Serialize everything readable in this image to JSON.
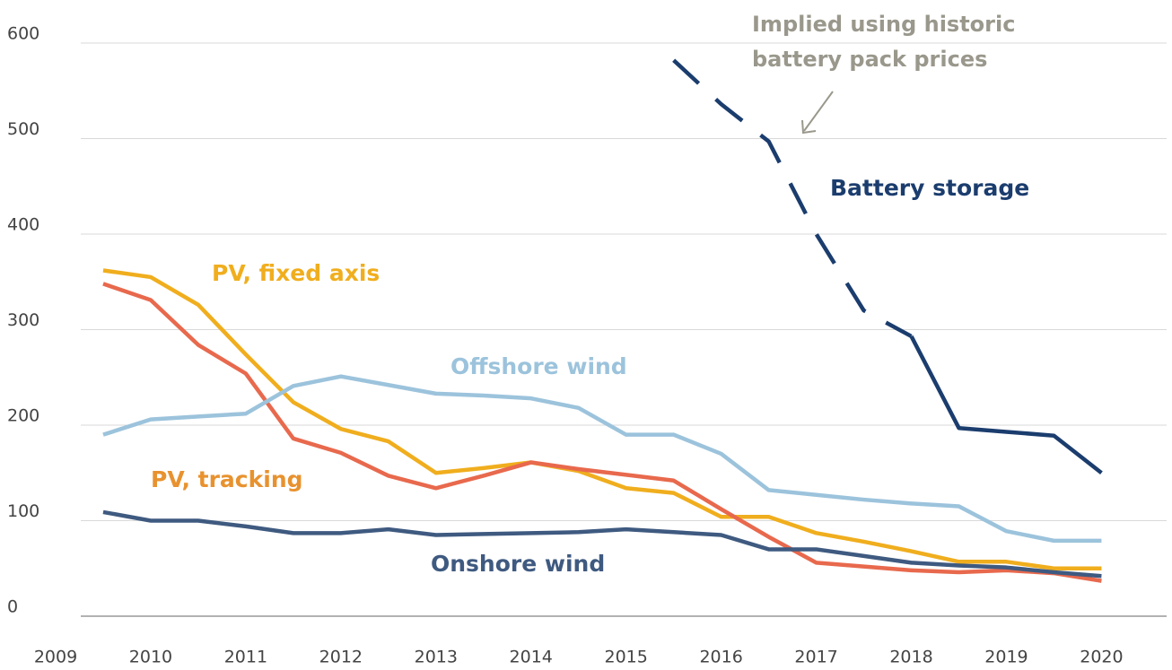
{
  "chart_data": {
    "type": "line",
    "x": [
      2009.5,
      2010,
      2010.5,
      2011,
      2011.5,
      2012,
      2012.5,
      2013,
      2013.5,
      2014,
      2014.5,
      2015,
      2015.5,
      2016,
      2016.5,
      2017,
      2017.5,
      2018,
      2018.5,
      2019,
      2019.5,
      2020
    ],
    "series": [
      {
        "name": "PV, fixed axis",
        "color": "#f0ae1e",
        "values": [
          362,
          355,
          326,
          274,
          224,
          196,
          183,
          150,
          155,
          161,
          152,
          134,
          129,
          104,
          104,
          87,
          78,
          68,
          57,
          57,
          50,
          50
        ]
      },
      {
        "name": "PV, tracking",
        "color": "#e8694d",
        "values": [
          348,
          331,
          284,
          254,
          186,
          171,
          147,
          134,
          147,
          161,
          154,
          148,
          142,
          112,
          83,
          56,
          52,
          48,
          46,
          48,
          45,
          37
        ]
      },
      {
        "name": "Offshore wind",
        "color": "#9cc3dc",
        "values": [
          190,
          206,
          209,
          212,
          241,
          251,
          242,
          233,
          231,
          228,
          218,
          190,
          190,
          170,
          132,
          127,
          122,
          118,
          115,
          89,
          79,
          79
        ]
      },
      {
        "name": "Onshore wind",
        "color": "#3f5a80",
        "values": [
          109,
          100,
          100,
          94,
          87,
          87,
          91,
          85,
          86,
          87,
          88,
          91,
          88,
          85,
          70,
          70,
          63,
          56,
          53,
          51,
          46,
          42
        ]
      },
      {
        "name": "Battery storage",
        "color": "#1b3d6e",
        "dash_until": 2018,
        "values": [
          null,
          null,
          null,
          null,
          null,
          null,
          null,
          null,
          null,
          null,
          null,
          null,
          582,
          536,
          497,
          400,
          320,
          293,
          197,
          193,
          189,
          150
        ]
      }
    ],
    "annotation": {
      "lines": [
        "Implied using historic",
        "battery pack prices"
      ]
    },
    "xlim": [
      2009,
      2020.6
    ],
    "xticks": [
      2009,
      2010,
      2011,
      2012,
      2013,
      2014,
      2015,
      2016,
      2017,
      2018,
      2019,
      2020
    ],
    "ylim": [
      0,
      600
    ],
    "yticks": [
      0,
      100,
      200,
      300,
      400,
      500,
      600
    ],
    "grid": true
  }
}
